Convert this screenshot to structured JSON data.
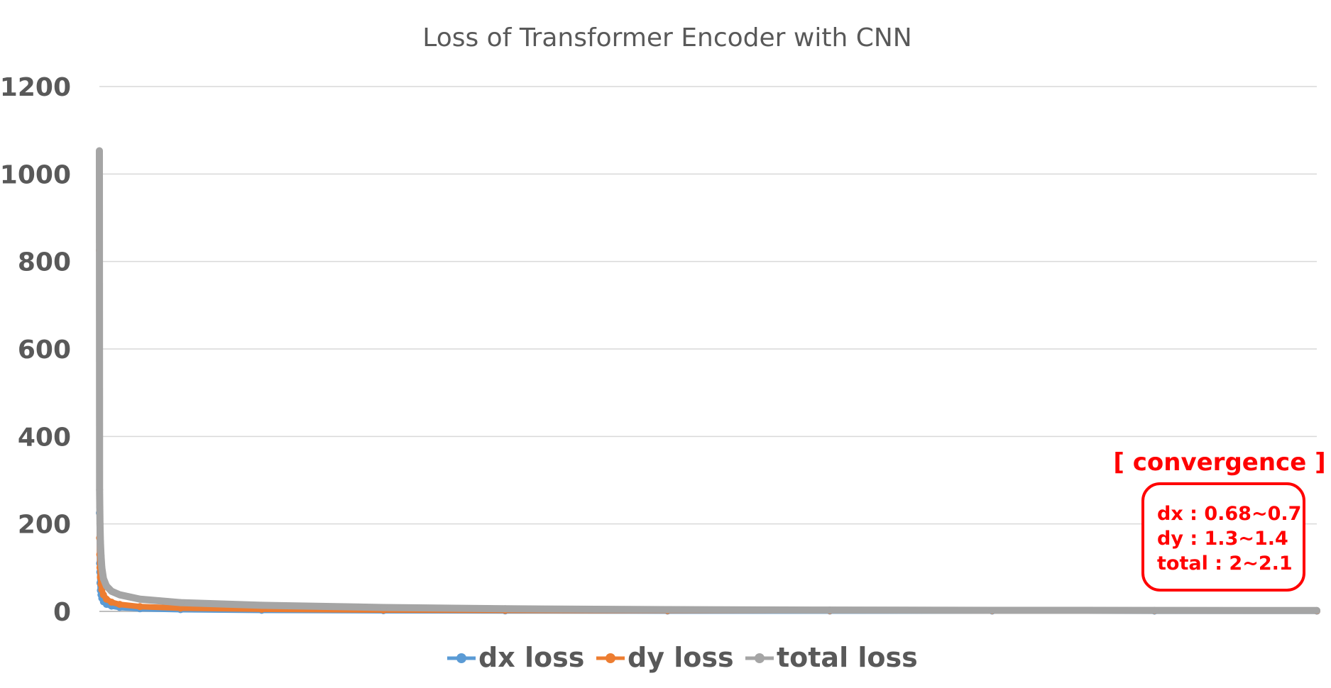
{
  "chart_data": {
    "type": "line",
    "title": "Loss of Transformer Encoder with CNN",
    "xlabel": "",
    "ylabel": "",
    "ylim": [
      0,
      1200
    ],
    "yticks": [
      "0",
      "200",
      "400",
      "600",
      "800",
      "1000",
      "1200"
    ],
    "x_tick_labels_shown": false,
    "grid": true,
    "legend_position": "bottom",
    "series": [
      {
        "name": "dx loss",
        "color": "#5B9BD5",
        "x": [
          0,
          1,
          2,
          3,
          5,
          8,
          12,
          20,
          35,
          60,
          100,
          200,
          400,
          800,
          1400,
          2000,
          2800,
          3600,
          4400,
          5200,
          6000
        ],
        "values": [
          225,
          110,
          90,
          65,
          48,
          38,
          30,
          22,
          16,
          12,
          9,
          6,
          4,
          2.5,
          1.6,
          1.2,
          0.9,
          0.8,
          0.75,
          0.7,
          0.69
        ]
      },
      {
        "name": "dy loss",
        "color": "#ED7D31",
        "x": [
          0,
          1,
          2,
          3,
          5,
          8,
          12,
          20,
          35,
          60,
          100,
          200,
          400,
          800,
          1400,
          2000,
          2800,
          3600,
          4400,
          5200,
          6000
        ],
        "values": [
          825,
          168,
          130,
          100,
          78,
          62,
          50,
          38,
          28,
          21,
          16,
          11,
          7.5,
          5,
          3.2,
          2.4,
          1.8,
          1.6,
          1.5,
          1.4,
          1.35
        ]
      },
      {
        "name": "total loss",
        "color": "#A5A5A5",
        "x": [
          0,
          1,
          2,
          3,
          5,
          8,
          12,
          20,
          35,
          60,
          100,
          200,
          400,
          800,
          1400,
          2000,
          2800,
          3600,
          4400,
          5200,
          6000
        ],
        "values": [
          1053,
          278,
          238,
          200,
          160,
          128,
          100,
          75,
          58,
          46,
          38,
          28,
          20,
          14,
          9,
          6,
          4,
          3,
          2.5,
          2.2,
          2.05
        ]
      }
    ],
    "annotation": {
      "title": "[ convergence ]",
      "lines": [
        "dx : 0.68~0.7",
        "dy : 1.3~1.4",
        "total : 2~2.1"
      ],
      "color": "#FF0000"
    }
  }
}
